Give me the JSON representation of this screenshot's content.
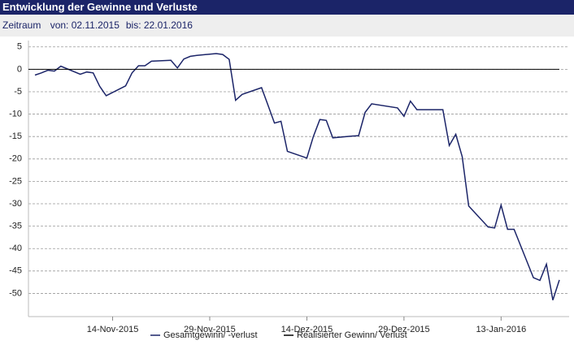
{
  "header": {
    "title": "Entwicklung der Gewinne und Verluste",
    "period_label": "Zeitraum",
    "from": "von: 02.11.2015",
    "to": "bis: 22.01.2016"
  },
  "chart_data": {
    "type": "line",
    "x": [
      "2015-11-02",
      "2015-11-03",
      "2015-11-04",
      "2015-11-05",
      "2015-11-06",
      "2015-11-09",
      "2015-11-10",
      "2015-11-11",
      "2015-11-12",
      "2015-11-13",
      "2015-11-16",
      "2015-11-17",
      "2015-11-18",
      "2015-11-19",
      "2015-11-20",
      "2015-11-23",
      "2015-11-24",
      "2015-11-25",
      "2015-11-26",
      "2015-11-27",
      "2015-11-30",
      "2015-12-01",
      "2015-12-02",
      "2015-12-03",
      "2015-12-04",
      "2015-12-07",
      "2015-12-08",
      "2015-12-09",
      "2015-12-10",
      "2015-12-11",
      "2015-12-14",
      "2015-12-15",
      "2015-12-16",
      "2015-12-17",
      "2015-12-18",
      "2015-12-21",
      "2015-12-22",
      "2015-12-23",
      "2015-12-24",
      "2015-12-28",
      "2015-12-29",
      "2015-12-30",
      "2015-12-31",
      "2016-01-04",
      "2016-01-05",
      "2016-01-06",
      "2016-01-07",
      "2016-01-08",
      "2016-01-11",
      "2016-01-12",
      "2016-01-13",
      "2016-01-14",
      "2016-01-15",
      "2016-01-18",
      "2016-01-19",
      "2016-01-20",
      "2016-01-21",
      "2016-01-22"
    ],
    "series": [
      {
        "name": "Gesamtgewinn/ -verlust",
        "color": "#1b2468",
        "values": [
          -1.3,
          -0.8,
          -0.2,
          -0.4,
          0.7,
          -1.1,
          -0.6,
          -0.8,
          -3.8,
          -5.9,
          -3.7,
          -0.8,
          0.8,
          0.8,
          1.8,
          2.0,
          0.3,
          2.3,
          2.9,
          3.1,
          3.5,
          3.3,
          2.2,
          -6.9,
          -5.6,
          -4.1,
          -8.0,
          -12.0,
          -11.6,
          -18.3,
          -19.8,
          -15.0,
          -11.2,
          -11.4,
          -15.3,
          -14.9,
          -14.8,
          -9.6,
          -7.7,
          -8.6,
          -10.5,
          -7.1,
          -9.0,
          -9.0,
          -17.0,
          -14.5,
          -19.5,
          -30.5,
          -35.2,
          -35.4,
          -30.3,
          -35.7,
          -35.7,
          -46.5,
          -47.1,
          -43.5,
          -51.5,
          -47.0
        ]
      },
      {
        "name": "Realisierter Gewinn/ Verlust",
        "color": "#000000",
        "x": [
          "2015-11-01",
          "2016-01-22"
        ],
        "values": [
          0,
          0
        ]
      }
    ],
    "xlim": [
      "2015-11-01",
      "2016-01-22"
    ],
    "xticks": [
      {
        "value": "2015-11-14",
        "label": "14-Nov-2015"
      },
      {
        "value": "2015-11-29",
        "label": "29-Nov-2015"
      },
      {
        "value": "2015-12-14",
        "label": "14-Dez-2015"
      },
      {
        "value": "2015-12-29",
        "label": "29-Dez-2015"
      },
      {
        "value": "2016-01-13",
        "label": "13-Jan-2016"
      }
    ],
    "ylim": [
      -53,
      5.5
    ],
    "yticks": [
      5,
      0,
      -5,
      -10,
      -15,
      -20,
      -25,
      -30,
      -35,
      -40,
      -45,
      -50
    ],
    "grid": true
  }
}
